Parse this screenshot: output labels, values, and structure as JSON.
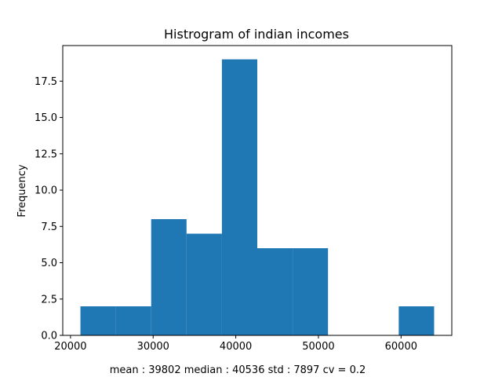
{
  "chart_data": {
    "type": "bar",
    "subtype": "histogram",
    "title": "Histrogram of indian incomes",
    "xlabel": "",
    "ylabel": "Frequency",
    "bins": [
      {
        "start": 21200,
        "end": 25480,
        "count": 2
      },
      {
        "start": 25480,
        "end": 29760,
        "count": 2
      },
      {
        "start": 29760,
        "end": 34040,
        "count": 8
      },
      {
        "start": 34040,
        "end": 38320,
        "count": 7
      },
      {
        "start": 38320,
        "end": 42600,
        "count": 19
      },
      {
        "start": 42600,
        "end": 46880,
        "count": 6
      },
      {
        "start": 46880,
        "end": 51160,
        "count": 6
      },
      {
        "start": 51160,
        "end": 55440,
        "count": 0
      },
      {
        "start": 55440,
        "end": 59720,
        "count": 0
      },
      {
        "start": 59720,
        "end": 64000,
        "count": 2
      }
    ],
    "xlim": [
      19060,
      66140
    ],
    "ylim": [
      0,
      19.95
    ],
    "xticks": [
      20000,
      30000,
      40000,
      50000,
      60000
    ],
    "xtick_labels": [
      "20000",
      "30000",
      "40000",
      "50000",
      "60000"
    ],
    "yticks": [
      0,
      2.5,
      5,
      7.5,
      10,
      12.5,
      15,
      17.5
    ],
    "ytick_labels": [
      "0.0",
      "2.5",
      "5.0",
      "7.5",
      "10.0",
      "12.5",
      "15.0",
      "17.5"
    ],
    "bar_color": "#1f77b4",
    "grid": false,
    "legend": null
  },
  "footer_text": "mean : 39802  median : 40536 std : 7897 cv = 0.2"
}
